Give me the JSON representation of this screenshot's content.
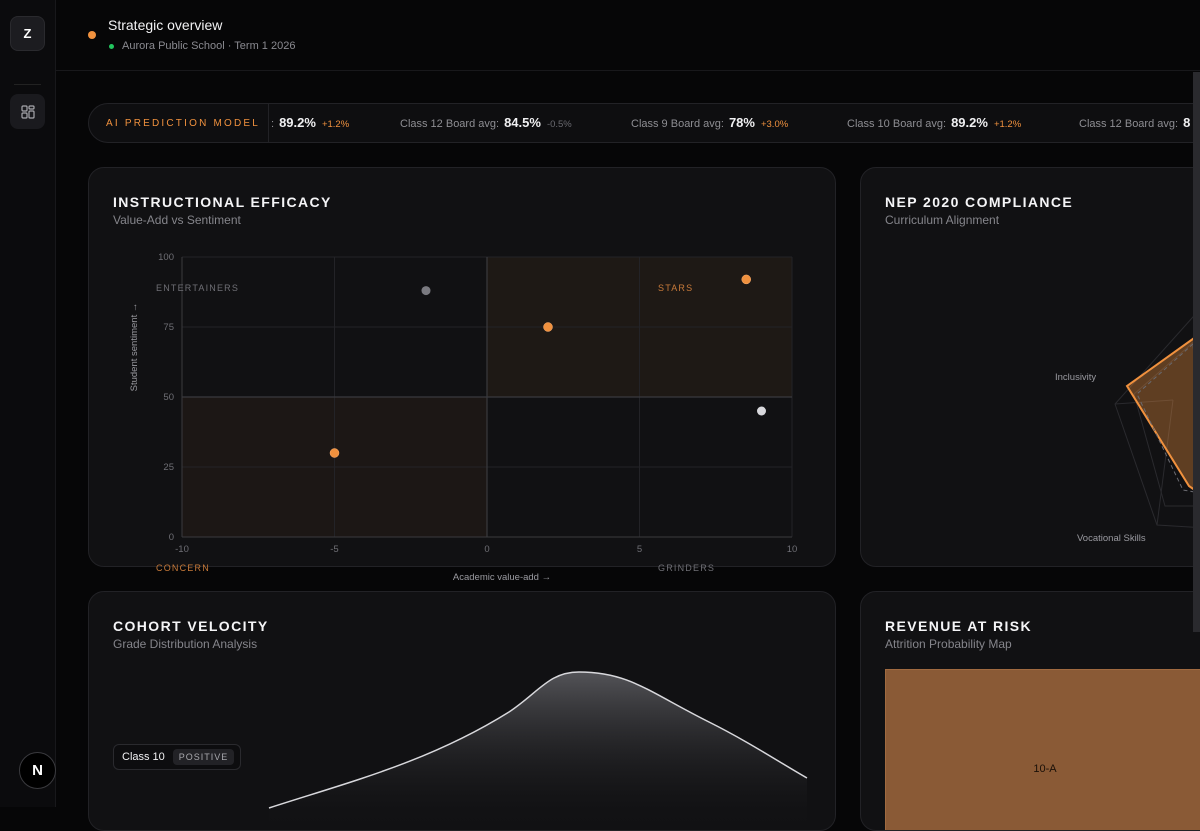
{
  "sidebar": {
    "logo_letter": "Z",
    "bottom_letter": "N"
  },
  "header": {
    "title": "Strategic overview",
    "subtitle": "Aurora Public School · Term 1 2026"
  },
  "ticker": {
    "label": "AI PREDICTION MODEL",
    "items": [
      {
        "name": ":",
        "value": "89.2%",
        "delta": "+1.2%",
        "trend": "pos"
      },
      {
        "name": "Class 12 Board avg:",
        "value": "84.5%",
        "delta": "-0.5%",
        "trend": "neg"
      },
      {
        "name": "Class 9 Board avg:",
        "value": "78%",
        "delta": "+3.0%",
        "trend": "pos"
      },
      {
        "name": "Class 10 Board avg:",
        "value": "89.2%",
        "delta": "+1.2%",
        "trend": "pos"
      },
      {
        "name": "Class 12 Board avg:",
        "value": "8",
        "delta": "",
        "trend": "neg"
      }
    ]
  },
  "efficacy": {
    "title": "INSTRUCTIONAL EFFICACY",
    "subtitle": "Value-Add vs Sentiment",
    "quadrants": {
      "tl": "ENTERTAINERS",
      "tr": "STARS",
      "bl": "CONCERN",
      "br": "GRINDERS"
    }
  },
  "nep": {
    "title": "NEP 2020 COMPLIANCE",
    "subtitle": "Curriculum Alignment",
    "axes": [
      "Inclusivity",
      "Vocational Skills"
    ]
  },
  "cohort": {
    "title": "COHORT VELOCITY",
    "subtitle": "Grade Distribution Analysis",
    "badge_class": "Class 10",
    "badge_status": "POSITIVE"
  },
  "revenue": {
    "title": "REVENUE AT RISK",
    "subtitle": "Attrition Probability Map",
    "cell_label": "10-A"
  },
  "colors": {
    "accent": "#f0913e",
    "positive": "#22c55e",
    "muted_point": "#7a7a80",
    "light_point": "#d8d8dc"
  },
  "chart_data": {
    "type": "scatter",
    "title": "",
    "xlabel": "Academic value-add →",
    "ylabel": "Student sentiment →",
    "xlim": [
      -10,
      10
    ],
    "ylim": [
      0,
      100
    ],
    "xticks": [
      "-10",
      "-5",
      "0",
      "5",
      "10"
    ],
    "yticks": [
      "0",
      "25",
      "50",
      "75",
      "100"
    ],
    "grid": true,
    "points": [
      {
        "x": -2,
        "y": 88,
        "color": "#7a7a80"
      },
      {
        "x": 2,
        "y": 75,
        "color": "#f0913e"
      },
      {
        "x": 8.5,
        "y": 92,
        "color": "#f0913e"
      },
      {
        "x": 9,
        "y": 45,
        "color": "#d8d8dc"
      },
      {
        "x": -5,
        "y": 30,
        "color": "#f0913e"
      }
    ]
  }
}
